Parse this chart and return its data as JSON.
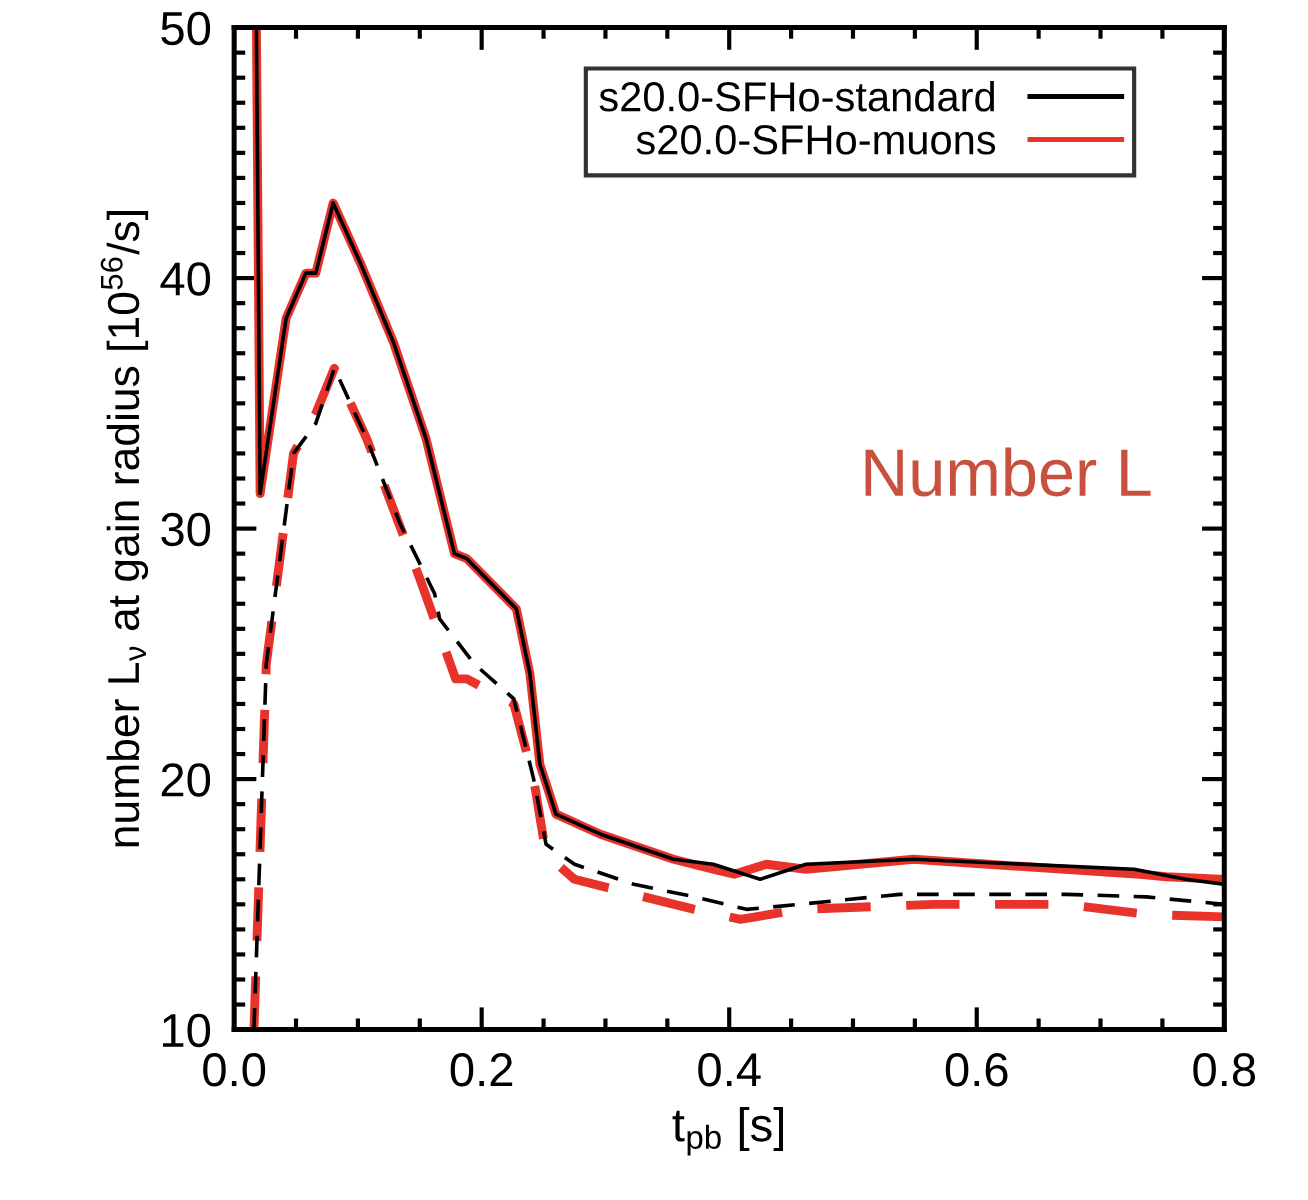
{
  "chart_data": {
    "type": "line",
    "xlabel": "t$_{pb}$ [s]",
    "ylabel": "number L$_{ν}$ at gain radius [10$^{56}$/s]",
    "xlim": [
      0.0,
      0.8
    ],
    "xticks": [
      {
        "value": 0.0,
        "label": "0.0"
      },
      {
        "value": 0.2,
        "label": "0.2"
      },
      {
        "value": 0.4,
        "label": "0.4"
      },
      {
        "value": 0.6,
        "label": "0.6"
      },
      {
        "value": 0.8,
        "label": "0.8"
      }
    ],
    "ylim": [
      10,
      50
    ],
    "yticks": [
      10,
      20,
      30,
      40,
      50
    ],
    "grid": false,
    "legend": "top right",
    "annotations": [
      "Number L"
    ],
    "series": [
      {
        "name": "s20.0-SFHo-standard",
        "color": "#000000",
        "line_style": "solid",
        "x": [
          0.018,
          0.021,
          0.042,
          0.058,
          0.066,
          0.08,
          0.102,
          0.129,
          0.155,
          0.178,
          0.188,
          0.228,
          0.239,
          0.247,
          0.26,
          0.296,
          0.355,
          0.387,
          0.425,
          0.462,
          0.549,
          0.727,
          0.769,
          0.8
        ],
        "values": [
          50,
          31.4,
          38.4,
          40.2,
          40.2,
          43.0,
          40.6,
          37.4,
          33.6,
          29.0,
          28.8,
          26.8,
          24.2,
          20.6,
          18.6,
          17.8,
          16.8,
          16.6,
          16.0,
          16.6,
          16.8,
          16.4,
          16.0,
          15.8
        ]
      },
      {
        "name": "s20.0-SFHo-muons",
        "color": "#e8332a",
        "line_style": "solid",
        "x": [
          0.018,
          0.021,
          0.042,
          0.058,
          0.066,
          0.08,
          0.102,
          0.129,
          0.155,
          0.178,
          0.188,
          0.228,
          0.239,
          0.247,
          0.26,
          0.296,
          0.355,
          0.387,
          0.404,
          0.43,
          0.462,
          0.549,
          0.732,
          0.753,
          0.8
        ],
        "values": [
          50,
          31.4,
          38.4,
          40.2,
          40.2,
          43.0,
          40.6,
          37.4,
          33.6,
          29.0,
          28.8,
          26.8,
          24.2,
          20.6,
          18.6,
          17.8,
          16.8,
          16.4,
          16.2,
          16.6,
          16.4,
          16.8,
          16.2,
          16.1,
          16.0
        ]
      },
      {
        "color": "#000000",
        "line_style": "dashed",
        "x": [
          0.016,
          0.026,
          0.048,
          0.066,
          0.081,
          0.107,
          0.134,
          0.162,
          0.166,
          0.194,
          0.226,
          0.242,
          0.252,
          0.275,
          0.323,
          0.372,
          0.414,
          0.457,
          0.538,
          0.672,
          0.737,
          0.8
        ],
        "values": [
          10,
          24.6,
          33.0,
          34.2,
          36.4,
          33.6,
          30.2,
          27.4,
          26.4,
          24.6,
          23.2,
          20.0,
          17.4,
          16.6,
          15.8,
          15.3,
          14.8,
          15.0,
          15.4,
          15.4,
          15.3,
          15.0
        ]
      },
      {
        "color": "#e8332a",
        "line_style": "dashed",
        "x": [
          0.016,
          0.026,
          0.048,
          0.066,
          0.081,
          0.107,
          0.15,
          0.179,
          0.188,
          0.226,
          0.242,
          0.252,
          0.275,
          0.323,
          0.372,
          0.409,
          0.457,
          0.565,
          0.672,
          0.737,
          0.8
        ],
        "values": [
          10,
          24.6,
          33.0,
          34.6,
          36.4,
          33.6,
          28.0,
          24.0,
          24.0,
          23.0,
          20.0,
          17.0,
          16.0,
          15.4,
          14.8,
          14.4,
          14.8,
          15.0,
          15.0,
          14.6,
          14.5
        ]
      }
    ]
  }
}
